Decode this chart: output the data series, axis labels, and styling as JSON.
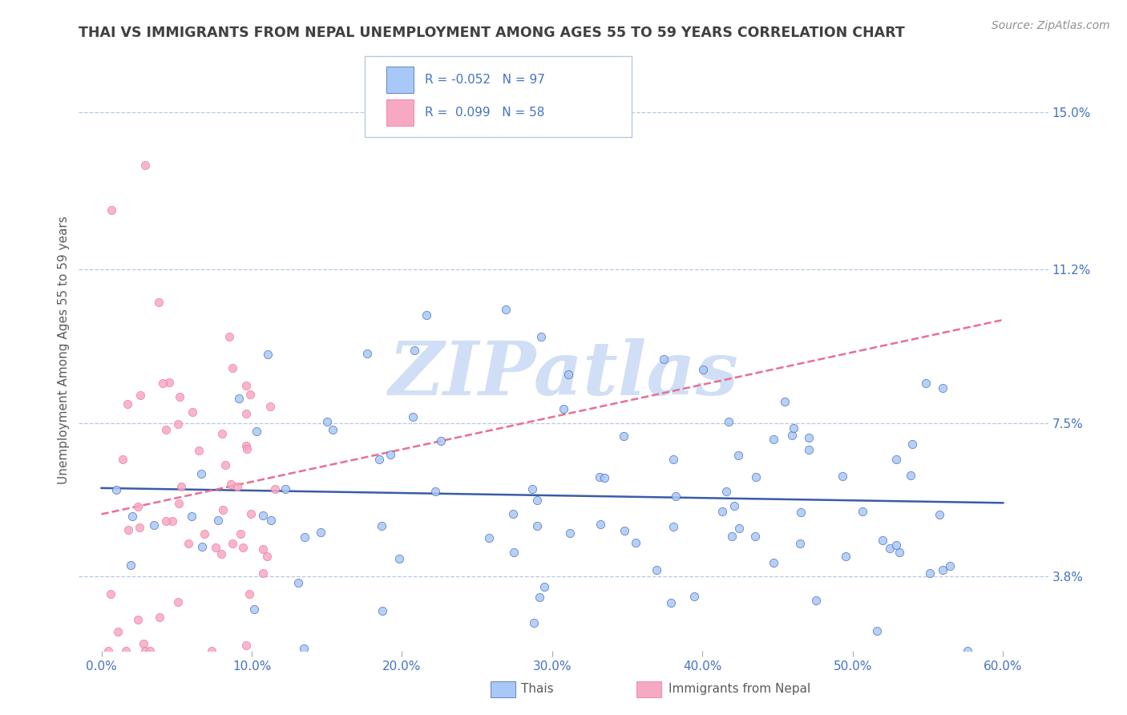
{
  "title": "THAI VS IMMIGRANTS FROM NEPAL UNEMPLOYMENT AMONG AGES 55 TO 59 YEARS CORRELATION CHART",
  "source": "Source: ZipAtlas.com",
  "ylabel": "Unemployment Among Ages 55 to 59 years",
  "xlabel_ticks": [
    "0.0%",
    "10.0%",
    "20.0%",
    "30.0%",
    "40.0%",
    "50.0%",
    "60.0%"
  ],
  "xlabel_vals": [
    0.0,
    10.0,
    20.0,
    30.0,
    40.0,
    50.0,
    60.0
  ],
  "ytick_vals": [
    3.8,
    7.5,
    11.2,
    15.0
  ],
  "ytick_labels": [
    "3.8%",
    "7.5%",
    "11.2%",
    "15.0%"
  ],
  "xlim": [
    -1.5,
    63
  ],
  "ylim": [
    2.0,
    16.5
  ],
  "thai_color": "#a8c8f8",
  "nepal_color": "#f7a8c4",
  "thai_R": -0.052,
  "thai_N": 97,
  "nepal_R": 0.099,
  "nepal_N": 58,
  "thai_line_color": "#3a5ca8",
  "nepal_line_color": "#e87090",
  "watermark": "ZIPatlas",
  "watermark_color": "#d0dff5",
  "legend_label_thai": "Thais",
  "legend_label_nepal": "Immigrants from Nepal",
  "background_color": "#ffffff",
  "grid_color": "#b8c8e0",
  "title_color": "#404040",
  "axis_label_color": "#5b5b5b",
  "tick_label_color": "#4472c4",
  "source_color": "#909090",
  "legend_text_color": "#4472c4"
}
